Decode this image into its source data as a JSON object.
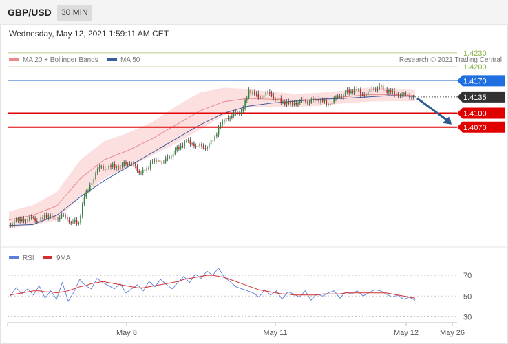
{
  "header": {
    "symbol": "GBP/USD",
    "interval": "30 MIN"
  },
  "timestamp": "Wednesday, May 12, 2021 1:59:11 AM CET",
  "legend": {
    "ma20_label": "MA 20 + Bollinger Bands",
    "ma50_label": "MA 50",
    "credit": "Research © 2021 Trading Central"
  },
  "colors": {
    "green_level": "#8ab54a",
    "blue_level": "#1f6fe0",
    "red_level": "#e00000",
    "current": "#333333",
    "arrow": "#2c5b8e",
    "candle_up": "#2e8b3a",
    "candle_down": "#c62828",
    "ma20": "#e88a8a",
    "ma50": "#3a5d9c",
    "band": "#fbdada",
    "rsi": "#5b7fd6",
    "ma9": "#d32f2f"
  },
  "chart_data": [
    {
      "type": "candlestick",
      "title": "GBP/USD",
      "ylim": [
        1.3825,
        1.4255
      ],
      "series": [
        {
          "name": "MA 20 + Bollinger Bands",
          "values": [
            1.387,
            1.388,
            1.39,
            1.396,
            1.4,
            1.402,
            1.4045,
            1.4075,
            1.4105,
            1.4125,
            1.4132,
            1.413,
            1.4128,
            1.413,
            1.4135,
            1.414,
            1.414,
            1.4138
          ]
        },
        {
          "name": "MA 50",
          "values": [
            1.3858,
            1.386,
            1.388,
            1.392,
            1.3955,
            1.3985,
            1.4015,
            1.4045,
            1.4075,
            1.41,
            1.4115,
            1.4122,
            1.4126,
            1.413,
            1.4132,
            1.4135,
            1.4138,
            1.4136
          ]
        }
      ],
      "levels": [
        {
          "label": "1.4230",
          "value": 1.423,
          "kind": "green"
        },
        {
          "label": "1.4200",
          "value": 1.42,
          "kind": "green"
        },
        {
          "label": "1.4170",
          "value": 1.417,
          "kind": "blue"
        },
        {
          "label": "1.4135",
          "value": 1.4135,
          "kind": "current"
        },
        {
          "label": "1.4100",
          "value": 1.41,
          "kind": "red"
        },
        {
          "label": "1.4070",
          "value": 1.407,
          "kind": "red"
        }
      ],
      "price_path": [
        1.386,
        1.3868,
        1.3872,
        1.387,
        1.3874,
        1.3868,
        1.388,
        1.3876,
        1.3872,
        1.388,
        1.387,
        1.3866,
        1.3864,
        1.392,
        1.3945,
        1.397,
        1.3985,
        1.398,
        1.399,
        1.3978,
        1.3995,
        1.399,
        1.3985,
        1.397,
        1.3982,
        1.3995,
        1.4,
        1.3995,
        1.4005,
        1.402,
        1.403,
        1.404,
        1.4035,
        1.403,
        1.4025,
        1.4032,
        1.405,
        1.4075,
        1.409,
        1.4095,
        1.41,
        1.411,
        1.415,
        1.414,
        1.4135,
        1.4145,
        1.4138,
        1.413,
        1.4125,
        1.412,
        1.4122,
        1.4126,
        1.4124,
        1.4128,
        1.413,
        1.4125,
        1.412,
        1.413,
        1.4135,
        1.4145,
        1.4148,
        1.415,
        1.414,
        1.4145,
        1.4152,
        1.4158,
        1.415,
        1.4145,
        1.4142,
        1.414,
        1.4138,
        1.4135
      ],
      "target_arrow": {
        "from": 1.4135,
        "to": 1.407
      }
    },
    {
      "type": "line",
      "title": "RSI",
      "ylim": [
        25,
        80
      ],
      "yticks": [
        "70",
        "50",
        "30"
      ],
      "series": [
        {
          "name": "RSI",
          "values": [
            50,
            58,
            52,
            57,
            51,
            60,
            48,
            55,
            47,
            63,
            45,
            54,
            66,
            60,
            57,
            67,
            63,
            60,
            57,
            62,
            53,
            57,
            61,
            55,
            64,
            59,
            66,
            61,
            57,
            63,
            69,
            63,
            71,
            67,
            74,
            70,
            77,
            68,
            64,
            59,
            57,
            55,
            53,
            49,
            56,
            51,
            55,
            47,
            54,
            52,
            49,
            55,
            46,
            52,
            50,
            53,
            55,
            48,
            54,
            52,
            55,
            50,
            53,
            56,
            55,
            52,
            49,
            51,
            47,
            49,
            46
          ]
        },
        {
          "name": "9MA",
          "values": [
            51,
            52,
            53,
            54,
            55,
            55,
            54,
            54,
            53,
            54,
            55,
            57,
            59,
            60,
            62,
            63,
            64,
            63,
            62,
            61,
            60,
            59,
            58,
            58,
            59,
            60,
            61,
            62,
            63,
            64,
            66,
            67,
            68,
            69,
            70,
            70,
            69,
            68,
            66,
            64,
            62,
            60,
            58,
            56,
            55,
            54,
            53,
            52,
            52,
            51,
            51,
            51,
            51,
            51,
            52,
            52,
            52,
            52,
            53,
            53,
            53,
            53,
            53,
            53,
            53,
            53,
            52,
            51,
            50,
            49,
            48
          ]
        }
      ]
    }
  ],
  "x_axis": {
    "labels": [
      "May 8",
      "May 11",
      "May 12",
      "May 26"
    ]
  }
}
